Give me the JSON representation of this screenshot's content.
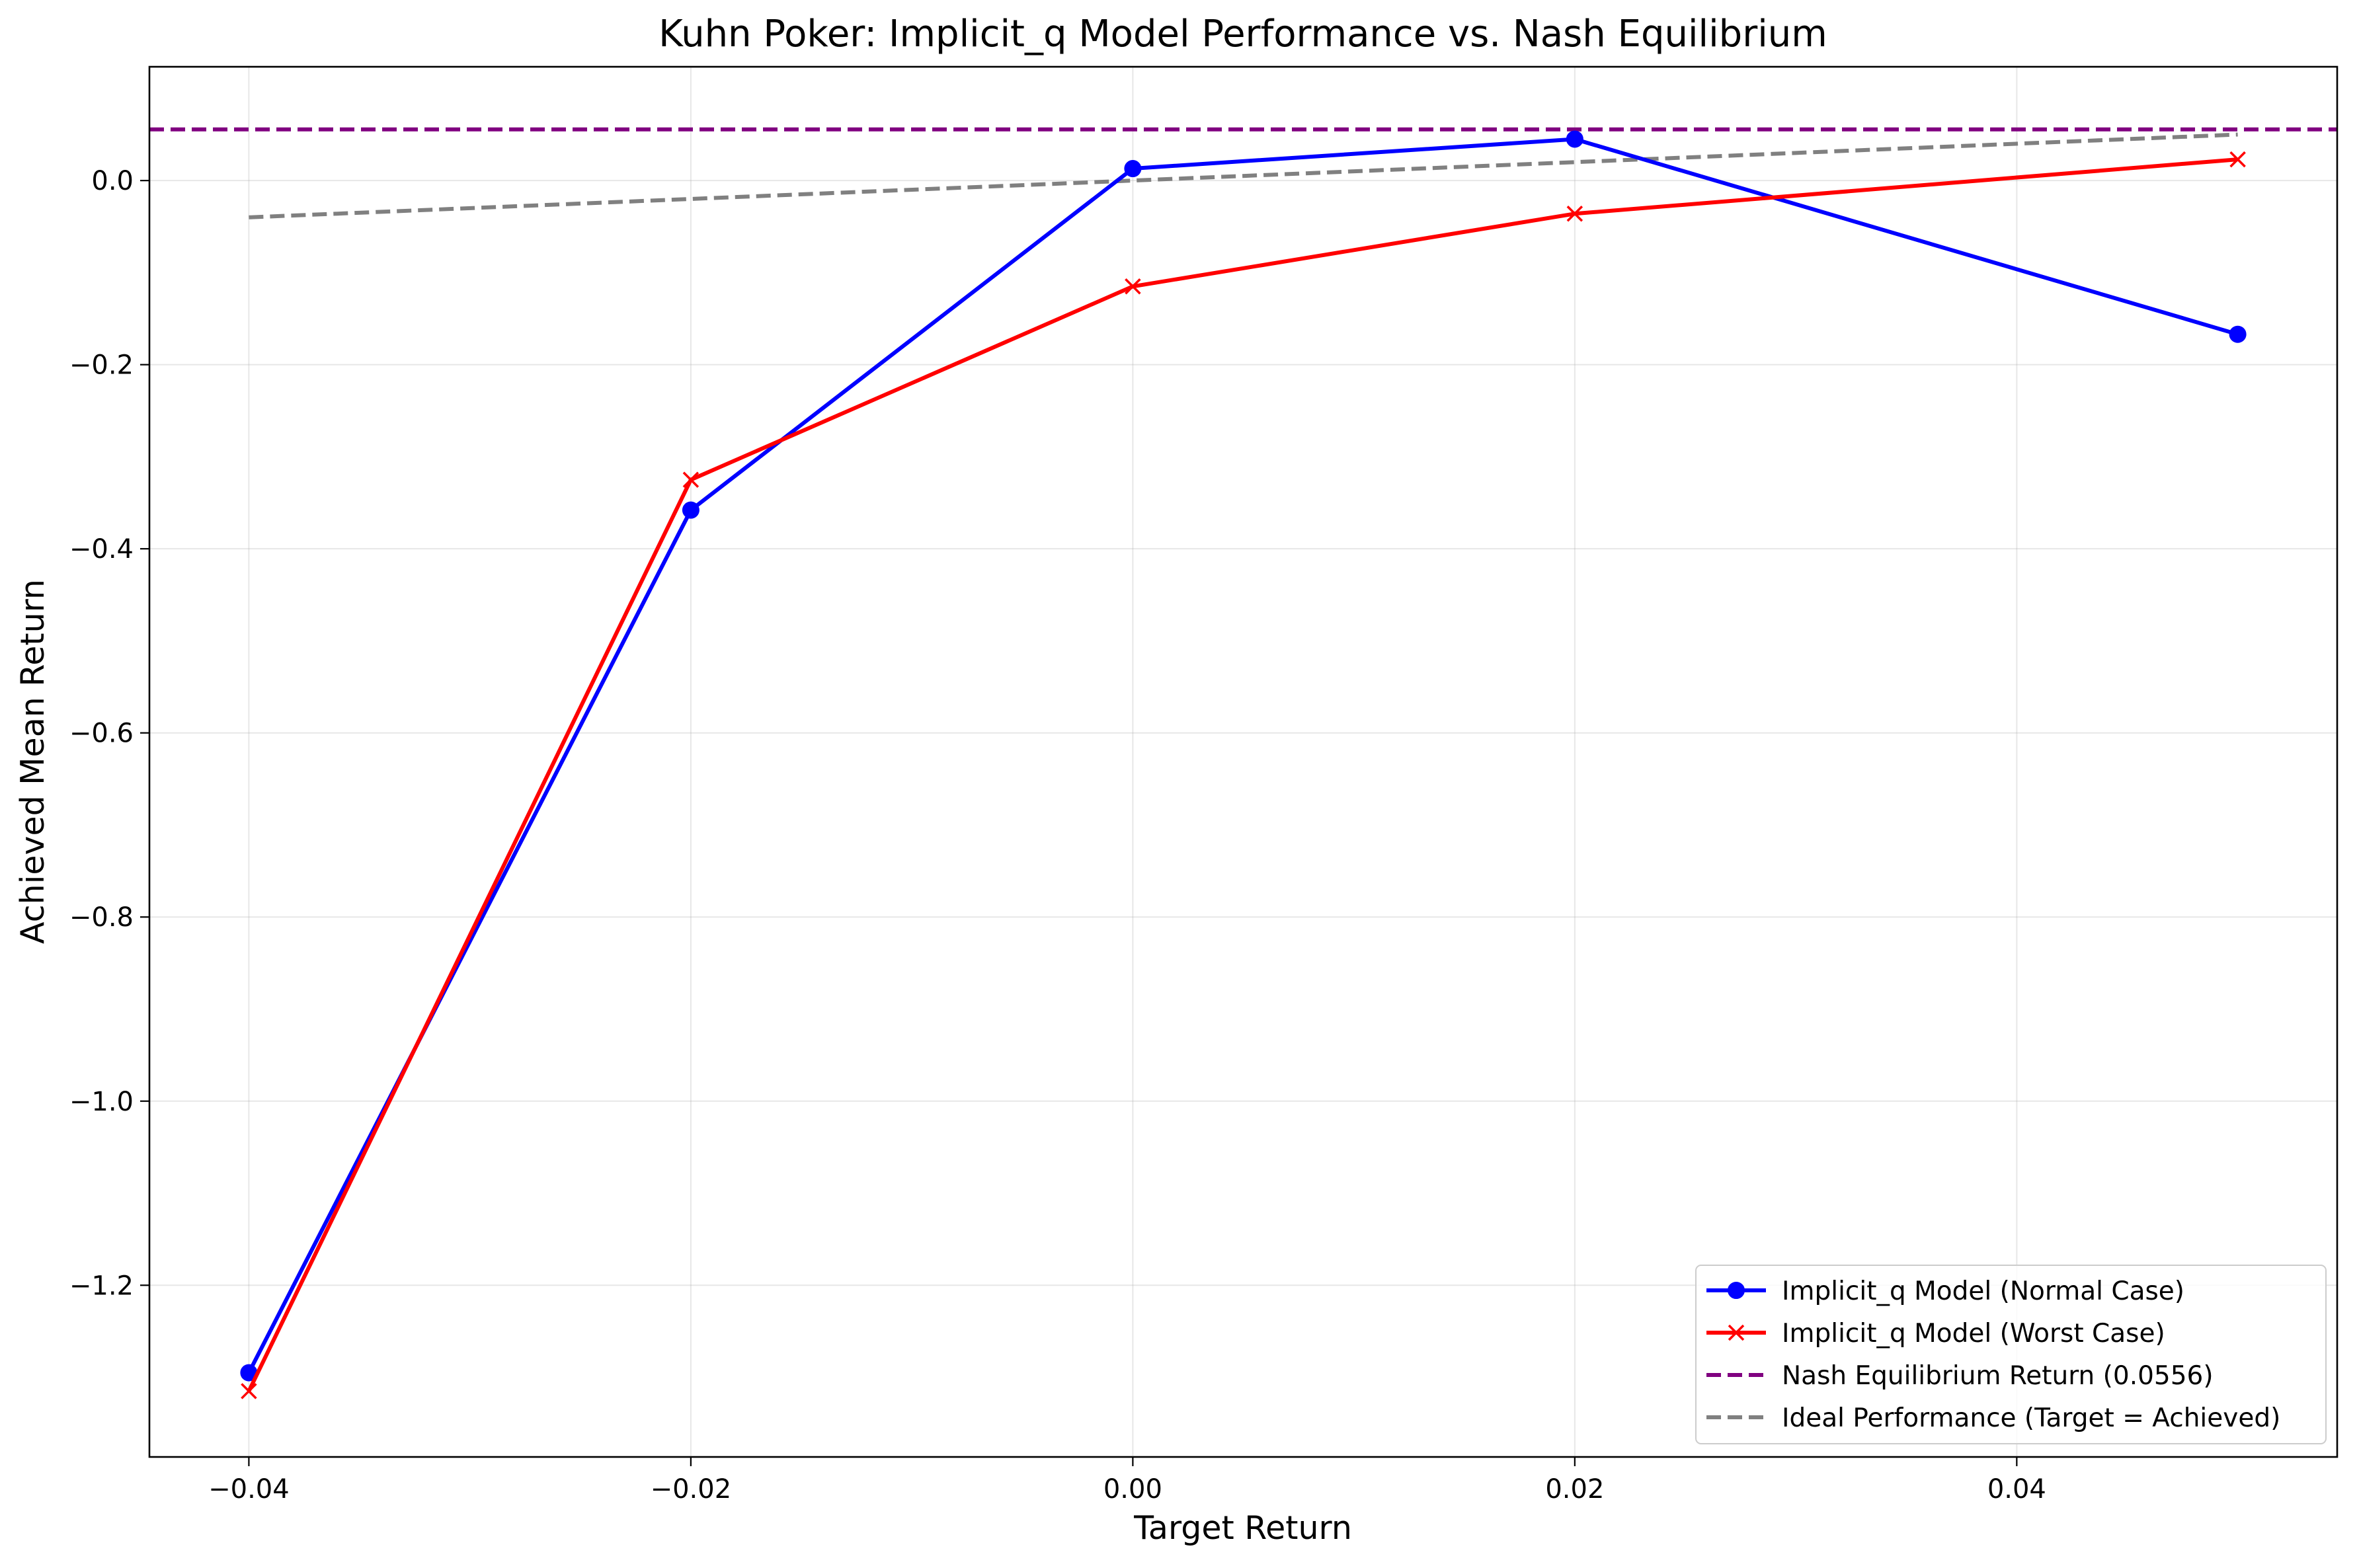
{
  "chart_data": {
    "type": "line",
    "title": "Kuhn Poker: Implicit_q Model Performance vs. Nash Equilibrium",
    "xlabel": "Target Return",
    "ylabel": "Achieved Mean Return",
    "xlim": [
      -0.0445,
      0.0545
    ],
    "ylim": [
      -1.3865,
      0.1236
    ],
    "grid": true,
    "legend_position": "lower-right",
    "xticks": [
      -0.04,
      -0.02,
      0.0,
      0.02,
      0.04
    ],
    "xtick_labels": [
      "−0.04",
      "−0.02",
      "0.00",
      "0.02",
      "0.04"
    ],
    "yticks": [
      0.0,
      -0.2,
      -0.4,
      -0.6,
      -0.8,
      -1.0,
      -1.2
    ],
    "ytick_labels": [
      "0.0",
      "−0.2",
      "−0.4",
      "−0.6",
      "−0.8",
      "−1.0",
      "−1.2"
    ],
    "series": [
      {
        "name": "Implicit_q Model (Normal Case)",
        "color": "#0000ff",
        "marker": "circle",
        "style": "solid",
        "x": [
          -0.04,
          -0.02,
          0.0,
          0.02,
          0.05
        ],
        "y": [
          -1.295,
          -0.358,
          0.013,
          0.045,
          -0.167
        ]
      },
      {
        "name": "Implicit_q Model (Worst Case)",
        "color": "#ff0000",
        "marker": "x",
        "style": "solid",
        "x": [
          -0.04,
          -0.02,
          0.0,
          0.02,
          0.05
        ],
        "y": [
          -1.315,
          -0.325,
          -0.115,
          -0.036,
          0.023
        ]
      },
      {
        "name": "Nash Equilibrium Return (0.0556)",
        "color": "#800080",
        "marker": "none",
        "style": "dashed",
        "kind": "hline",
        "y": 0.0556
      },
      {
        "name": "Ideal Performance (Target = Achieved)",
        "color": "#808080",
        "marker": "none",
        "style": "dashed",
        "x": [
          -0.04,
          0.05
        ],
        "y": [
          -0.04,
          0.05
        ]
      }
    ]
  }
}
